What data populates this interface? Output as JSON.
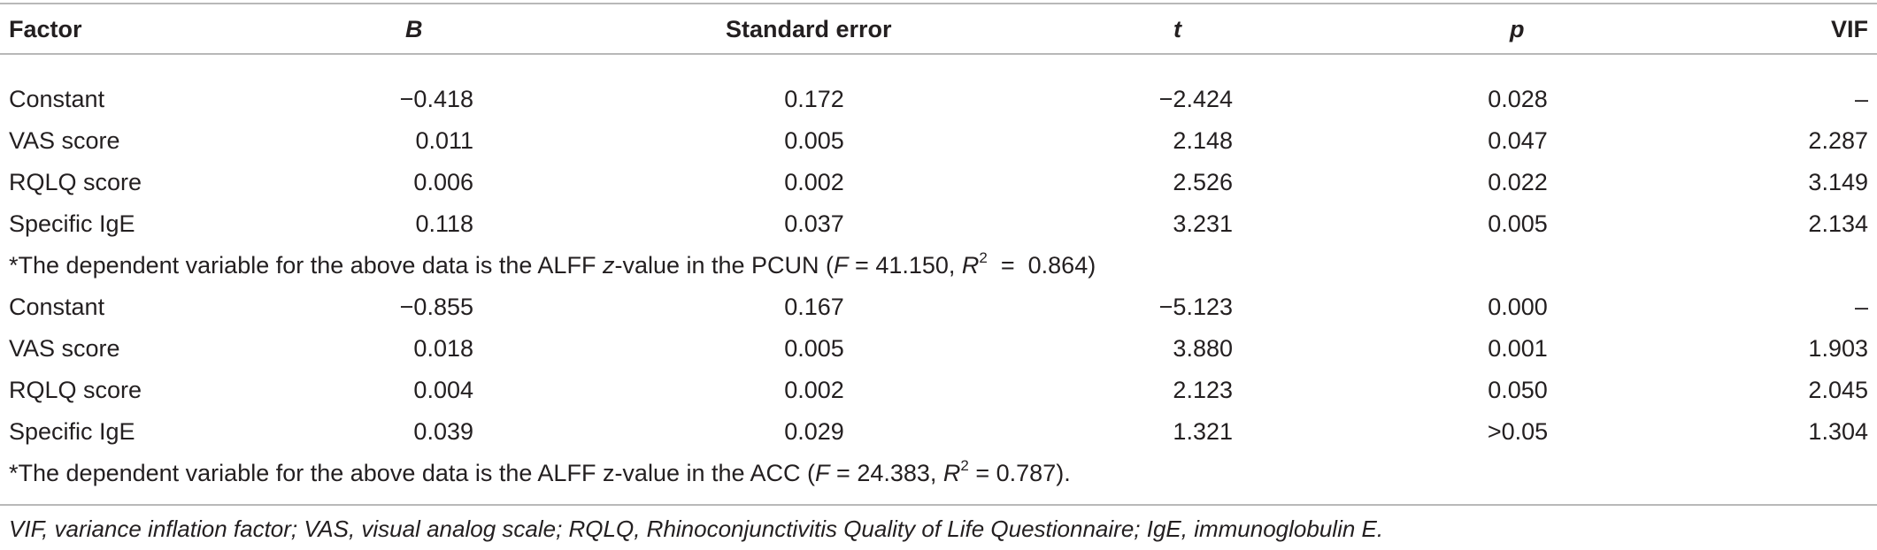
{
  "table": {
    "headers": {
      "factor": "Factor",
      "b": "B",
      "se": "Standard error",
      "t": "t",
      "p": "p",
      "vif": "VIF"
    },
    "block1": {
      "rows": [
        {
          "factor": "Constant",
          "b": "−0.418",
          "se": "0.172",
          "t": "−2.424",
          "p": "0.028",
          "vif": "–"
        },
        {
          "factor": "VAS score",
          "b": "0.011",
          "se": "0.005",
          "t": "2.148",
          "p": "0.047",
          "vif": "2.287"
        },
        {
          "factor": "RQLQ score",
          "b": "0.006",
          "se": "0.002",
          "t": "2.526",
          "p": "0.022",
          "vif": "3.149"
        },
        {
          "factor": "Specific IgE",
          "b": "0.118",
          "se": "0.037",
          "t": "3.231",
          "p": "0.005",
          "vif": "2.134"
        }
      ],
      "note": {
        "prefix": "*The dependent variable for the above data is the ALFF ",
        "z": "z",
        "mid": "-value in the PCUN (",
        "f_label": "F",
        "f_value": " = 41.150, ",
        "r_label": "R",
        "r_sup": "2",
        "r_value": "  =  0.864)"
      }
    },
    "block2": {
      "rows": [
        {
          "factor": "Constant",
          "b": "−0.855",
          "se": "0.167",
          "t": "−5.123",
          "p": "0.000",
          "vif": "–"
        },
        {
          "factor": "VAS score",
          "b": "0.018",
          "se": "0.005",
          "t": "3.880",
          "p": "0.001",
          "vif": "1.903"
        },
        {
          "factor": "RQLQ score",
          "b": "0.004",
          "se": "0.002",
          "t": "2.123",
          "p": "0.050",
          "vif": "2.045"
        },
        {
          "factor": "Specific IgE",
          "b": "0.039",
          "se": "0.029",
          "t": "1.321",
          "p": ">0.05",
          "vif": "1.304"
        }
      ],
      "note": {
        "prefix": "*The dependent variable for the above data is the ALFF z-value in the ACC (",
        "f_label": "F",
        "f_value": " = 24.383, ",
        "r_label": "R",
        "r_sup": "2",
        "r_value": " = 0.787)."
      }
    },
    "footnote": "VIF, variance inflation factor; VAS, visual analog scale; RQLQ, Rhinoconjunctivitis Quality of Life Questionnaire; IgE, immunoglobulin E."
  }
}
